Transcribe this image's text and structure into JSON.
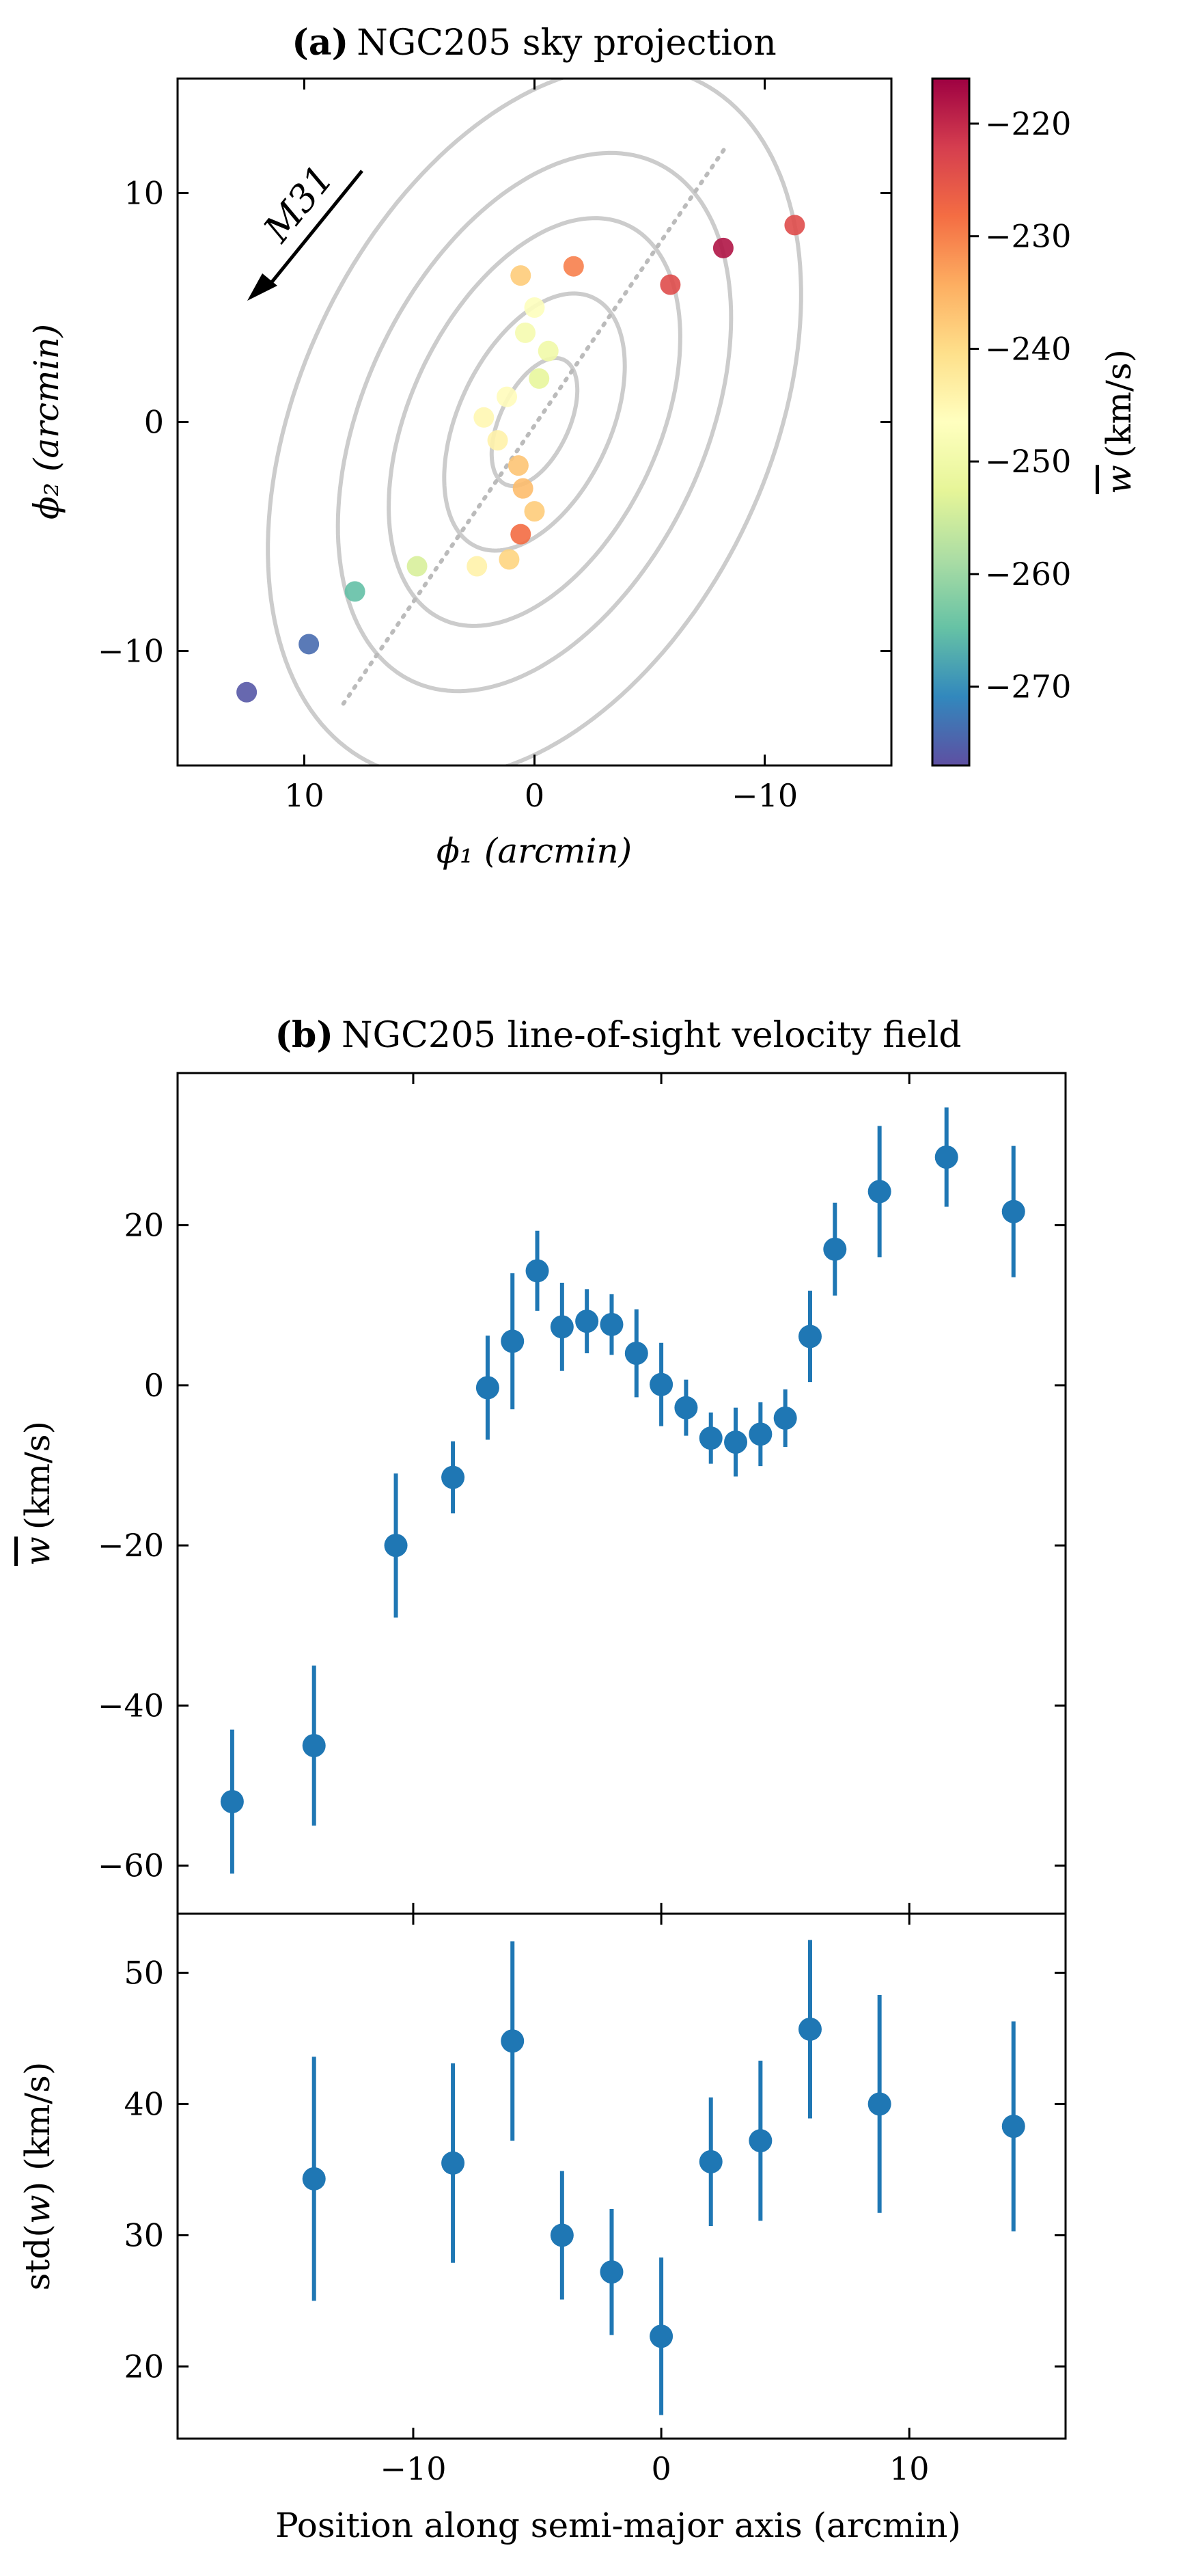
{
  "chart_data": [
    {
      "panel": "a",
      "type": "scatter",
      "title_prefix": "(a)",
      "title": "NGC205 sky projection",
      "xlabel": "ϕ₁ (arcmin)",
      "ylabel": "ϕ₂ (arcmin)",
      "xlim": [
        15.5,
        -15.5
      ],
      "ylim": [
        -15,
        15
      ],
      "xticks": [
        10,
        0,
        -10
      ],
      "xtick_labels": [
        "10",
        "0",
        "−10"
      ],
      "yticks": [
        10,
        0,
        -10
      ],
      "ytick_labels": [
        "10",
        "0",
        "−10"
      ],
      "annotation": "M31",
      "ellipses": [
        {
          "a": 3.0,
          "b": 1.5
        },
        {
          "a": 6.0,
          "b": 3.3
        },
        {
          "a": 9.5,
          "b": 5.4
        },
        {
          "a": 12.5,
          "b": 7.4
        },
        {
          "a": 16.5,
          "b": 10.2
        }
      ],
      "ellipse_angle_deg": 25,
      "ellipse_color": "#cccccc",
      "major_axis_line": {
        "from": [
          8.3,
          -12.3
        ],
        "to": [
          -8.3,
          12.0
        ],
        "color": "#bbbbbb"
      },
      "points": [
        {
          "x": 12.5,
          "y": -11.8,
          "value": -276
        },
        {
          "x": 9.8,
          "y": -9.7,
          "value": -274
        },
        {
          "x": 7.8,
          "y": -7.4,
          "value": -265
        },
        {
          "x": 5.1,
          "y": -6.3,
          "value": -254
        },
        {
          "x": 2.5,
          "y": -6.3,
          "value": -244
        },
        {
          "x": 1.1,
          "y": -6.0,
          "value": -239
        },
        {
          "x": 0.6,
          "y": -4.9,
          "value": -228
        },
        {
          "x": 0.0,
          "y": -3.9,
          "value": -238
        },
        {
          "x": 0.5,
          "y": -2.9,
          "value": -236
        },
        {
          "x": 0.7,
          "y": -1.9,
          "value": -237
        },
        {
          "x": 1.6,
          "y": -0.8,
          "value": -244
        },
        {
          "x": 2.2,
          "y": 0.2,
          "value": -245
        },
        {
          "x": 1.2,
          "y": 1.1,
          "value": -246
        },
        {
          "x": -0.6,
          "y": 3.1,
          "value": -250
        },
        {
          "x": -0.2,
          "y": 1.9,
          "value": -252
        },
        {
          "x": 0.4,
          "y": 3.9,
          "value": -249
        },
        {
          "x": 0.0,
          "y": 5.0,
          "value": -247
        },
        {
          "x": 0.6,
          "y": 6.4,
          "value": -238
        },
        {
          "x": -1.7,
          "y": 6.8,
          "value": -230
        },
        {
          "x": -5.9,
          "y": 6.0,
          "value": -224
        },
        {
          "x": -8.2,
          "y": 7.6,
          "value": -218
        },
        {
          "x": -11.3,
          "y": 8.6,
          "value": -224
        }
      ],
      "colorbar": {
        "label": "w̅ (km/s)",
        "label_symbol": "w",
        "label_units": "(km/s)",
        "range": [
          -277,
          -216
        ],
        "ticks": [
          -220,
          -230,
          -240,
          -250,
          -260,
          -270
        ],
        "tick_labels": [
          "−220",
          "−230",
          "−240",
          "−250",
          "−260",
          "−270"
        ],
        "colormap": "Spectral_r"
      }
    },
    {
      "panel": "b",
      "type": "scatter",
      "subtype": "errorbar",
      "title_prefix": "(b)",
      "title": "NGC205 line-of-sight velocity field",
      "xlabel": "Position along semi-major axis (arcmin)",
      "xlim": [
        -19.5,
        16.3
      ],
      "xticks": [
        -10,
        0,
        10
      ],
      "xtick_labels": [
        "−10",
        "0",
        "10"
      ],
      "marker_color": "#1f77b4",
      "top": {
        "ylabel": "w̅ (km/s)",
        "ylabel_symbol": "w",
        "ylabel_units": "(km/s)",
        "ylim": [
          -66,
          39
        ],
        "yticks": [
          20,
          0,
          -20,
          -40,
          -60
        ],
        "ytick_labels": [
          "20",
          "0",
          "−20",
          "−40",
          "−60"
        ],
        "x": [
          -17.3,
          -14.0,
          -10.7,
          -8.4,
          -7.0,
          -6.0,
          -5.0,
          -4.0,
          -3.0,
          -2.0,
          -1.0,
          0.0,
          1.0,
          2.0,
          3.0,
          4.0,
          5.0,
          6.0,
          7.0,
          8.8,
          11.5,
          14.2
        ],
        "y": [
          -52,
          -45,
          -20,
          -11.5,
          -0.3,
          5.5,
          14.3,
          7.3,
          8.0,
          7.6,
          4.0,
          0.1,
          -2.8,
          -6.6,
          -7.1,
          -6.1,
          -4.1,
          6.1,
          17.0,
          24.2,
          28.5,
          21.7
        ],
        "err": [
          9,
          10,
          9,
          4.5,
          6.5,
          8.5,
          5,
          5.5,
          4,
          3.8,
          5.5,
          5.2,
          3.5,
          3.2,
          4.3,
          4,
          3.6,
          5.7,
          5.8,
          8.2,
          6.2,
          8.2
        ]
      },
      "bottom": {
        "ylabel": "std(w) (km/s)",
        "ylabel_prefix": "std(",
        "ylabel_symbol": "w",
        "ylabel_suffix": ") (km/s)",
        "ylim": [
          14.5,
          54.5
        ],
        "yticks": [
          50,
          40,
          30,
          20
        ],
        "ytick_labels": [
          "50",
          "40",
          "30",
          "20"
        ],
        "x": [
          -14.0,
          -8.4,
          -6.0,
          -4.0,
          -2.0,
          0.0,
          2.0,
          4.0,
          6.0,
          8.8,
          14.2
        ],
        "y": [
          34.3,
          35.5,
          44.8,
          30.0,
          27.2,
          22.3,
          35.6,
          37.2,
          45.7,
          40.0,
          38.3
        ],
        "err": [
          9.3,
          7.6,
          7.6,
          4.9,
          4.8,
          6.0,
          4.9,
          6.1,
          6.8,
          8.3,
          8.0
        ]
      }
    }
  ]
}
